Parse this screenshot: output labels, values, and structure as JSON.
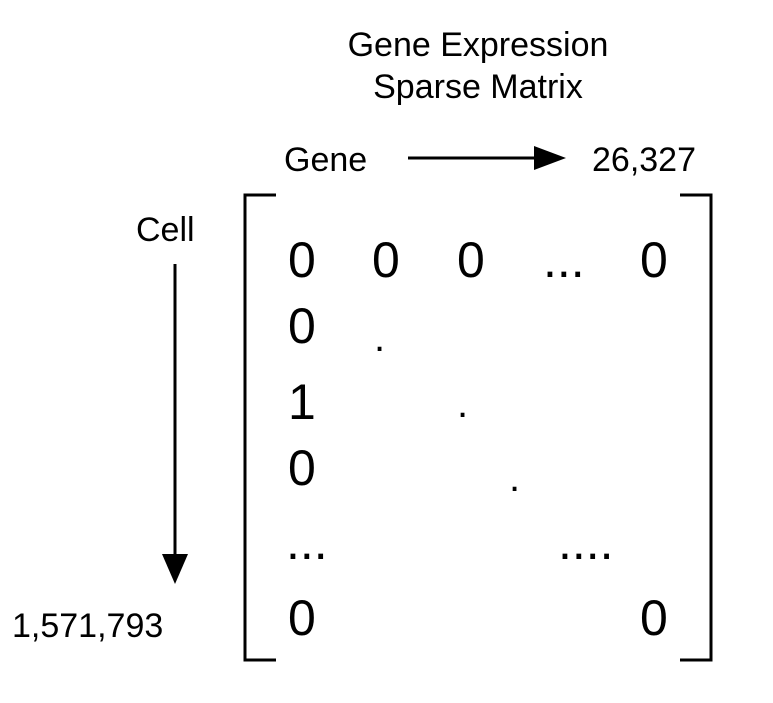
{
  "title": {
    "line1": "Gene Expression",
    "line2": "Sparse Matrix"
  },
  "axes": {
    "column_label": "Gene",
    "column_count": "26,327",
    "row_label": "Cell",
    "row_count": "1,571,793"
  },
  "matrix": {
    "row1": [
      "0",
      "0",
      "0",
      "...",
      "0"
    ],
    "row2": [
      "0",
      "."
    ],
    "row3": [
      "1",
      "."
    ],
    "row4": [
      "0",
      "."
    ],
    "row5": [
      "...",
      "...."
    ],
    "row6": [
      "0",
      "0"
    ]
  }
}
